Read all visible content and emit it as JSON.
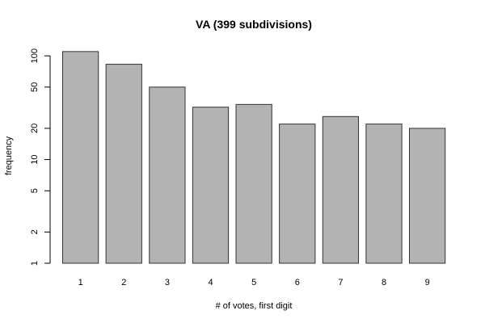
{
  "chart_data": {
    "type": "bar",
    "title": "VA (399 subdivisions)",
    "xlabel": "# of votes, first digit",
    "ylabel": "frequency",
    "categories": [
      "1",
      "2",
      "3",
      "4",
      "5",
      "6",
      "7",
      "8",
      "9"
    ],
    "values": [
      110,
      83,
      50,
      32,
      34,
      22,
      26,
      22,
      20
    ],
    "y_scale": "log",
    "ylim": [
      1,
      120
    ],
    "y_ticks": [
      1,
      2,
      5,
      10,
      20,
      50,
      100
    ],
    "y_tick_labels": [
      "1",
      "2",
      "5",
      "10",
      "20",
      "50",
      "100"
    ],
    "grid": false,
    "legend": "none",
    "bar_color": "#b3b3b3",
    "bar_border": "#333333"
  }
}
